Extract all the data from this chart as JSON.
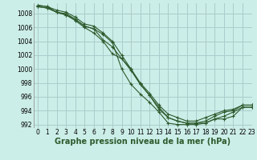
{
  "title": "Graphe pression niveau de la mer (hPa)",
  "bg_color": "#cceee8",
  "grid_color": "#aacccc",
  "line_color": "#2d5a2d",
  "xlim": [
    -0.5,
    23
  ],
  "ylim": [
    991.5,
    1009.5
  ],
  "yticks": [
    992,
    994,
    996,
    998,
    1000,
    1002,
    1004,
    1006,
    1008
  ],
  "xticks": [
    0,
    1,
    2,
    3,
    4,
    5,
    6,
    7,
    8,
    9,
    10,
    11,
    12,
    13,
    14,
    15,
    16,
    17,
    18,
    19,
    20,
    21,
    22,
    23
  ],
  "series": [
    [
      1009.2,
      1009.0,
      1008.2,
      1008.0,
      1007.2,
      1006.2,
      1005.8,
      1005.0,
      1003.8,
      1000.0,
      997.8,
      996.4,
      995.2,
      993.8,
      992.2,
      992.0,
      992.0,
      992.0,
      992.2,
      992.8,
      992.8,
      993.2,
      994.5,
      994.5
    ],
    [
      1009.0,
      1008.8,
      1008.2,
      1007.8,
      1007.0,
      1006.0,
      1005.2,
      1004.0,
      1002.2,
      1001.5,
      1000.0,
      997.8,
      996.2,
      994.2,
      993.0,
      992.5,
      992.2,
      992.2,
      992.2,
      992.8,
      993.2,
      993.8,
      994.5,
      994.5
    ],
    [
      1009.0,
      1008.8,
      1008.2,
      1007.8,
      1007.2,
      1006.2,
      1005.8,
      1004.2,
      1003.2,
      1001.5,
      999.8,
      997.8,
      996.2,
      994.5,
      993.0,
      992.5,
      992.2,
      992.2,
      992.5,
      993.2,
      993.8,
      994.0,
      994.8,
      994.8
    ],
    [
      1009.2,
      1009.0,
      1008.5,
      1008.2,
      1007.5,
      1006.5,
      1006.2,
      1005.2,
      1004.0,
      1002.0,
      1000.0,
      998.0,
      996.5,
      994.8,
      993.5,
      993.0,
      992.5,
      992.5,
      993.0,
      993.5,
      994.0,
      994.2,
      994.8,
      994.8
    ]
  ],
  "ylabel_fontsize": 6,
  "xlabel_fontsize": 7,
  "tick_fontsize": 5.5
}
